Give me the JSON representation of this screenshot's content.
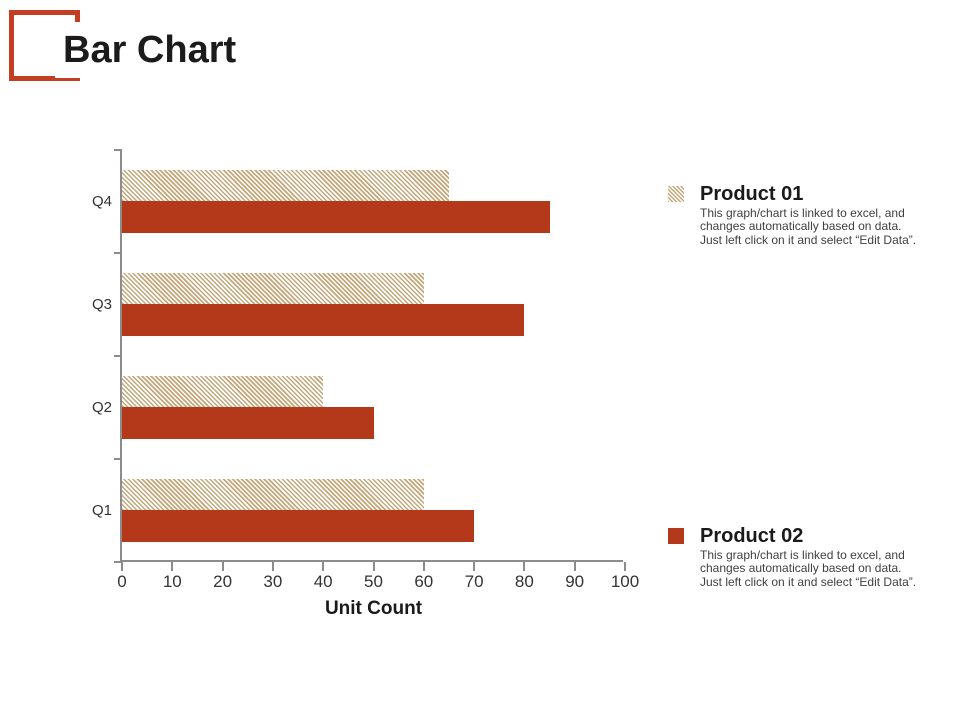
{
  "header": {
    "title": "Bar Chart"
  },
  "accent_color": "#C43E22",
  "chart_data": {
    "type": "bar",
    "orientation": "horizontal",
    "title": "",
    "categories": [
      "Q1",
      "Q2",
      "Q3",
      "Q4"
    ],
    "display_order_top_to_bottom": [
      "Q4",
      "Q3",
      "Q2",
      "Q1"
    ],
    "series": [
      {
        "name": "Product 01",
        "pattern": "diagonal-hatch",
        "color": "#C4A678",
        "values": [
          60,
          40,
          60,
          65
        ]
      },
      {
        "name": "Product 02",
        "pattern": "solid",
        "color": "#B4381A",
        "values": [
          70,
          50,
          80,
          85
        ]
      }
    ],
    "xlabel": "Unit Count",
    "xlim": [
      0,
      100
    ],
    "xticks": [
      0,
      10,
      20,
      30,
      40,
      50,
      60,
      70,
      80,
      90,
      100
    ],
    "grid": false,
    "legend_position": "right",
    "axis_color": "#8C8C8C"
  },
  "legend": {
    "items": [
      {
        "title": "Product 01",
        "swatch": "hatched",
        "desc_lines": [
          "This graph/chart is linked to excel, and",
          "changes automatically based on data.",
          "Just left click on it and select “Edit Data”."
        ]
      },
      {
        "title": "Product 02",
        "swatch": "solid",
        "desc_lines": [
          "This graph/chart is linked to excel, and",
          "changes automatically based on data.",
          "Just left click on it and select “Edit Data”."
        ]
      }
    ]
  }
}
